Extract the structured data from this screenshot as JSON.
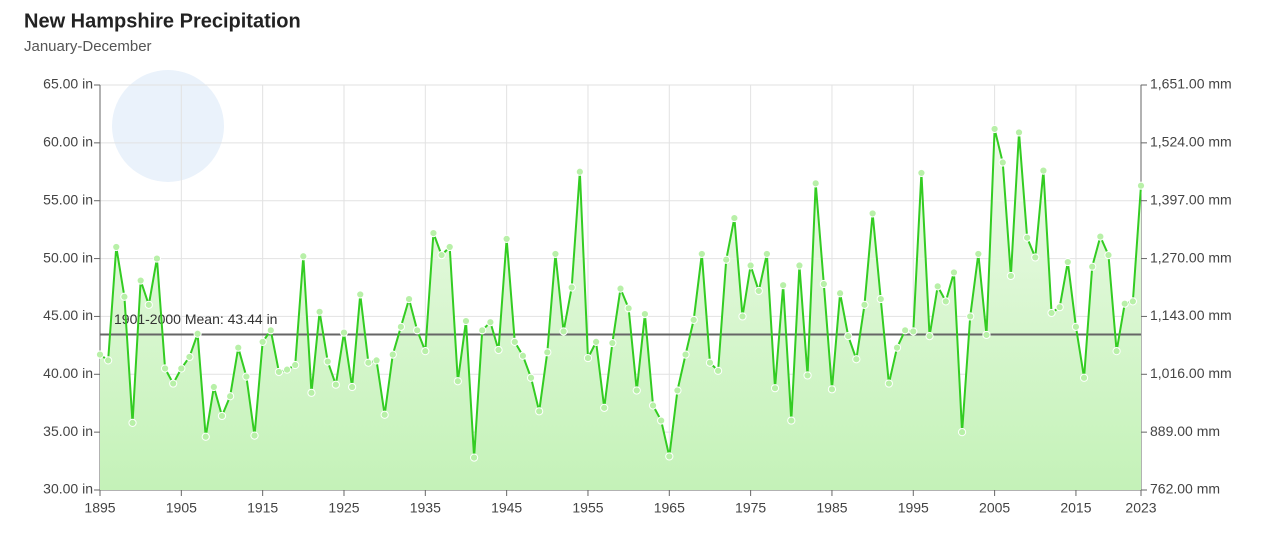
{
  "chart_data": {
    "type": "line",
    "title": "New Hampshire Precipitation",
    "subtitle": "January-December",
    "x": [
      1895,
      1896,
      1897,
      1898,
      1899,
      1900,
      1901,
      1902,
      1903,
      1904,
      1905,
      1906,
      1907,
      1908,
      1909,
      1910,
      1911,
      1912,
      1913,
      1914,
      1915,
      1916,
      1917,
      1918,
      1919,
      1920,
      1921,
      1922,
      1923,
      1924,
      1925,
      1926,
      1927,
      1928,
      1929,
      1930,
      1931,
      1932,
      1933,
      1934,
      1935,
      1936,
      1937,
      1938,
      1939,
      1940,
      1941,
      1942,
      1943,
      1944,
      1945,
      1946,
      1947,
      1948,
      1949,
      1950,
      1951,
      1952,
      1953,
      1954,
      1955,
      1956,
      1957,
      1958,
      1959,
      1960,
      1961,
      1962,
      1963,
      1964,
      1965,
      1966,
      1967,
      1968,
      1969,
      1970,
      1971,
      1972,
      1973,
      1974,
      1975,
      1976,
      1977,
      1978,
      1979,
      1980,
      1981,
      1982,
      1983,
      1984,
      1985,
      1986,
      1987,
      1988,
      1989,
      1990,
      1991,
      1992,
      1993,
      1994,
      1995,
      1996,
      1997,
      1998,
      1999,
      2000,
      2001,
      2002,
      2003,
      2004,
      2005,
      2006,
      2007,
      2008,
      2009,
      2010,
      2011,
      2012,
      2013,
      2014,
      2015,
      2016,
      2017,
      2018,
      2019,
      2020,
      2021,
      2022,
      2023
    ],
    "series": [
      {
        "color": "#33cc22",
        "values": [
          41.7,
          41.2,
          51.0,
          46.7,
          35.8,
          48.1,
          46.0,
          50.0,
          40.5,
          39.2,
          40.5,
          41.5,
          43.5,
          34.6,
          38.9,
          36.4,
          38.1,
          42.3,
          39.8,
          34.7,
          42.8,
          43.8,
          40.2,
          40.4,
          40.8,
          50.2,
          38.4,
          45.4,
          41.1,
          39.1,
          43.6,
          38.9,
          46.9,
          41.0,
          41.2,
          36.5,
          41.7,
          44.1,
          46.5,
          43.8,
          42.0,
          52.2,
          50.3,
          51.0,
          39.4,
          44.6,
          32.8,
          43.8,
          44.5,
          42.1,
          51.7,
          42.8,
          41.6,
          39.7,
          36.8,
          41.9,
          50.4,
          43.7,
          47.5,
          57.5,
          41.4,
          42.8,
          37.1,
          42.7,
          47.4,
          45.7,
          38.6,
          45.2,
          37.3,
          36.0,
          32.9,
          38.6,
          41.7,
          44.7,
          50.4,
          41.0,
          40.3,
          49.9,
          53.5,
          45.0,
          49.4,
          47.2,
          50.4,
          38.8,
          47.7,
          36.0,
          49.4,
          39.9,
          56.5,
          47.8,
          38.7,
          47.0,
          43.3,
          41.3,
          46.0,
          53.9,
          46.5,
          39.2,
          42.3,
          43.8,
          43.7,
          57.4,
          43.3,
          47.6,
          46.3,
          48.8,
          35.0,
          45.0,
          50.4,
          43.4,
          61.2,
          58.3,
          48.5,
          60.9,
          51.8,
          50.1,
          57.6,
          45.3,
          45.8,
          49.7,
          44.1,
          39.7,
          49.3,
          51.9,
          50.3,
          42.0,
          46.1,
          46.3,
          56.3
        ]
      }
    ],
    "mean": {
      "value": 43.44,
      "label": "1901-2000 Mean: 43.44 in"
    },
    "xlim": [
      1895,
      2023
    ],
    "xticks": [
      1895,
      1905,
      1915,
      1925,
      1935,
      1945,
      1955,
      1965,
      1975,
      1985,
      1995,
      2005,
      2015,
      2023
    ],
    "ylim": [
      30,
      65
    ],
    "yticks": [
      {
        "value": 30,
        "label": "30.00 in"
      },
      {
        "value": 35,
        "label": "35.00 in"
      },
      {
        "value": 40,
        "label": "40.00 in"
      },
      {
        "value": 45,
        "label": "45.00 in"
      },
      {
        "value": 50,
        "label": "50.00 in"
      },
      {
        "value": 55,
        "label": "55.00 in"
      },
      {
        "value": 60,
        "label": "60.00 in"
      },
      {
        "value": 65,
        "label": "65.00 in"
      }
    ],
    "y2lim": [
      762,
      1651
    ],
    "y2ticks": [
      {
        "value": 762,
        "label": "762.00 mm"
      },
      {
        "value": 889,
        "label": "889.00 mm"
      },
      {
        "value": 1016,
        "label": "1,016.00 mm"
      },
      {
        "value": 1143,
        "label": "1,143.00 mm"
      },
      {
        "value": 1270,
        "label": "1,270.00 mm"
      },
      {
        "value": 1397,
        "label": "1,397.00 mm"
      },
      {
        "value": 1524,
        "label": "1,524.00 mm"
      },
      {
        "value": 1651,
        "label": "1,651.00 mm"
      }
    ],
    "grid": true
  }
}
